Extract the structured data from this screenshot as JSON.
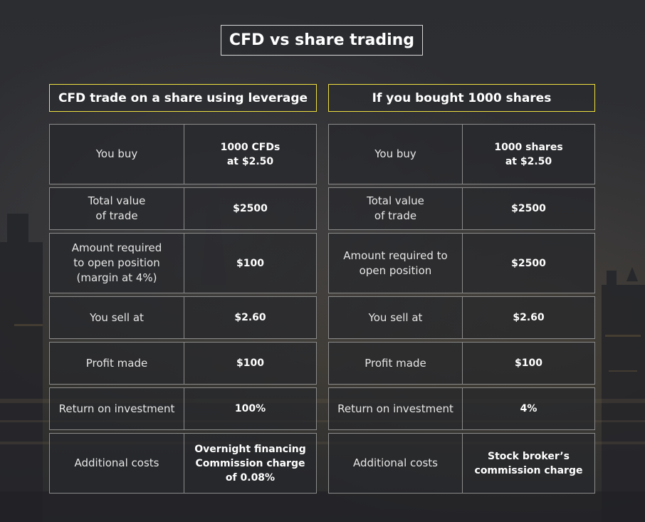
{
  "title": "CFD vs share trading",
  "left": {
    "header": "CFD trade on a share using leverage",
    "rows": [
      {
        "label": "You buy",
        "value": "1000 CFDs\nat $2.50"
      },
      {
        "label": "Total value\nof trade",
        "value": "$2500"
      },
      {
        "label": "Amount required\nto open position\n(margin at 4%)",
        "value": "$100"
      },
      {
        "label": "You sell at",
        "value": "$2.60"
      },
      {
        "label": "Profit made",
        "value": "$100"
      },
      {
        "label": "Return on investment",
        "value": "100%"
      },
      {
        "label": "Additional costs",
        "value": "Overnight financing\nCommission charge\nof 0.08%"
      }
    ]
  },
  "right": {
    "header": "If you bought 1000 shares",
    "rows": [
      {
        "label": "You buy",
        "value": "1000 shares\nat  $2.50"
      },
      {
        "label": "Total value\nof trade",
        "value": "$2500"
      },
      {
        "label": "Amount required to\nopen position",
        "value": "$2500"
      },
      {
        "label": "You sell at",
        "value": "$2.60"
      },
      {
        "label": "Profit made",
        "value": "$100"
      },
      {
        "label": "Return on investment",
        "value": "4%"
      },
      {
        "label": "Additional costs",
        "value": "Stock broker’s\ncommission charge"
      }
    ]
  }
}
